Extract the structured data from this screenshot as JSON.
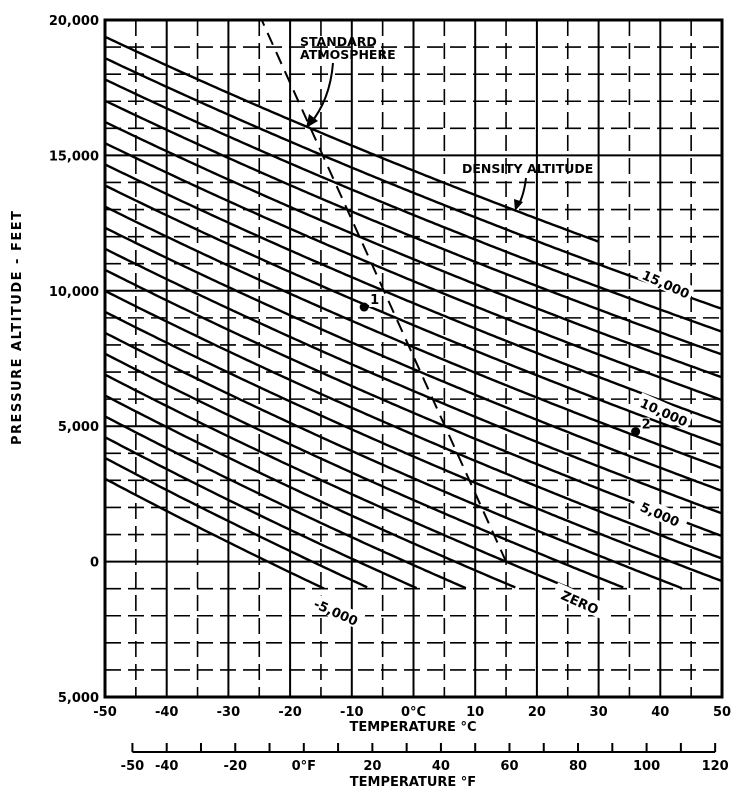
{
  "chart_data": {
    "type": "line",
    "title": "",
    "xlabel": "TEMPERATURE °C",
    "ylabel": "PRESSURE ALTITUDE - FEET",
    "secondary_xlabel": "TEMPERATURE °F",
    "xlim": [
      -50,
      50
    ],
    "ylim": [
      -5000,
      20000
    ],
    "grid": true,
    "x_ticks": [
      {
        "value": -50,
        "label": "-50"
      },
      {
        "value": -40,
        "label": "-40"
      },
      {
        "value": -30,
        "label": "-30"
      },
      {
        "value": -20,
        "label": "-20"
      },
      {
        "value": -10,
        "label": "-10"
      },
      {
        "value": 0,
        "label": "0°C"
      },
      {
        "value": 10,
        "label": "10"
      },
      {
        "value": 20,
        "label": "20"
      },
      {
        "value": 30,
        "label": "30"
      },
      {
        "value": 40,
        "label": "40"
      },
      {
        "value": 50,
        "label": "50"
      }
    ],
    "y_ticks": [
      {
        "value": 20000,
        "label": "20,000"
      },
      {
        "value": 15000,
        "label": "15,000"
      },
      {
        "value": 10000,
        "label": "10,000"
      },
      {
        "value": 5000,
        "label": "5,000"
      },
      {
        "value": 0,
        "label": "0"
      },
      {
        "value": -5000,
        "label": "5,000"
      }
    ],
    "f_axis": {
      "range": [
        -50,
        120
      ],
      "tick_step": 10,
      "labels": [
        {
          "value": -50,
          "label": "-50"
        },
        {
          "value": -40,
          "label": "-40"
        },
        {
          "value": -20,
          "label": "-20"
        },
        {
          "value": 0,
          "label": "0°F"
        },
        {
          "value": 20,
          "label": "20"
        },
        {
          "value": 40,
          "label": "40"
        },
        {
          "value": 60,
          "label": "60"
        },
        {
          "value": 80,
          "label": "80"
        },
        {
          "value": 100,
          "label": "100"
        },
        {
          "value": 120,
          "label": "120"
        }
      ]
    },
    "density_altitude_lines": {
      "values_ft": [
        -5000,
        -4000,
        -3000,
        -2000,
        -1000,
        0,
        1000,
        2000,
        3000,
        4000,
        5000,
        6000,
        7000,
        8000,
        9000,
        10000,
        11000,
        12000,
        13000,
        14000,
        15000,
        16000
      ],
      "min_pressure_altitude": -1000,
      "labels": [
        {
          "value": -5000,
          "label": "-5,000"
        },
        {
          "value": 0,
          "label": "ZERO"
        },
        {
          "value": 5000,
          "label": "5,000"
        },
        {
          "value": 10000,
          "label": "10,000"
        },
        {
          "value": 15000,
          "label": "15,000"
        }
      ]
    },
    "standard_atmosphere": {
      "x": [
        15,
        -24.6
      ],
      "y": [
        0,
        20000
      ],
      "style": "dashed"
    },
    "annotations": [
      {
        "text": "STANDARD ATMOSPHERE",
        "line1": "STANDARD",
        "line2": "ATMOSPHERE"
      },
      {
        "text": "DENSITY ALTITUDE"
      }
    ],
    "points": [
      {
        "label": "1",
        "x": -8,
        "y": 9400
      },
      {
        "label": "2",
        "x": 36,
        "y": 4800
      }
    ]
  }
}
